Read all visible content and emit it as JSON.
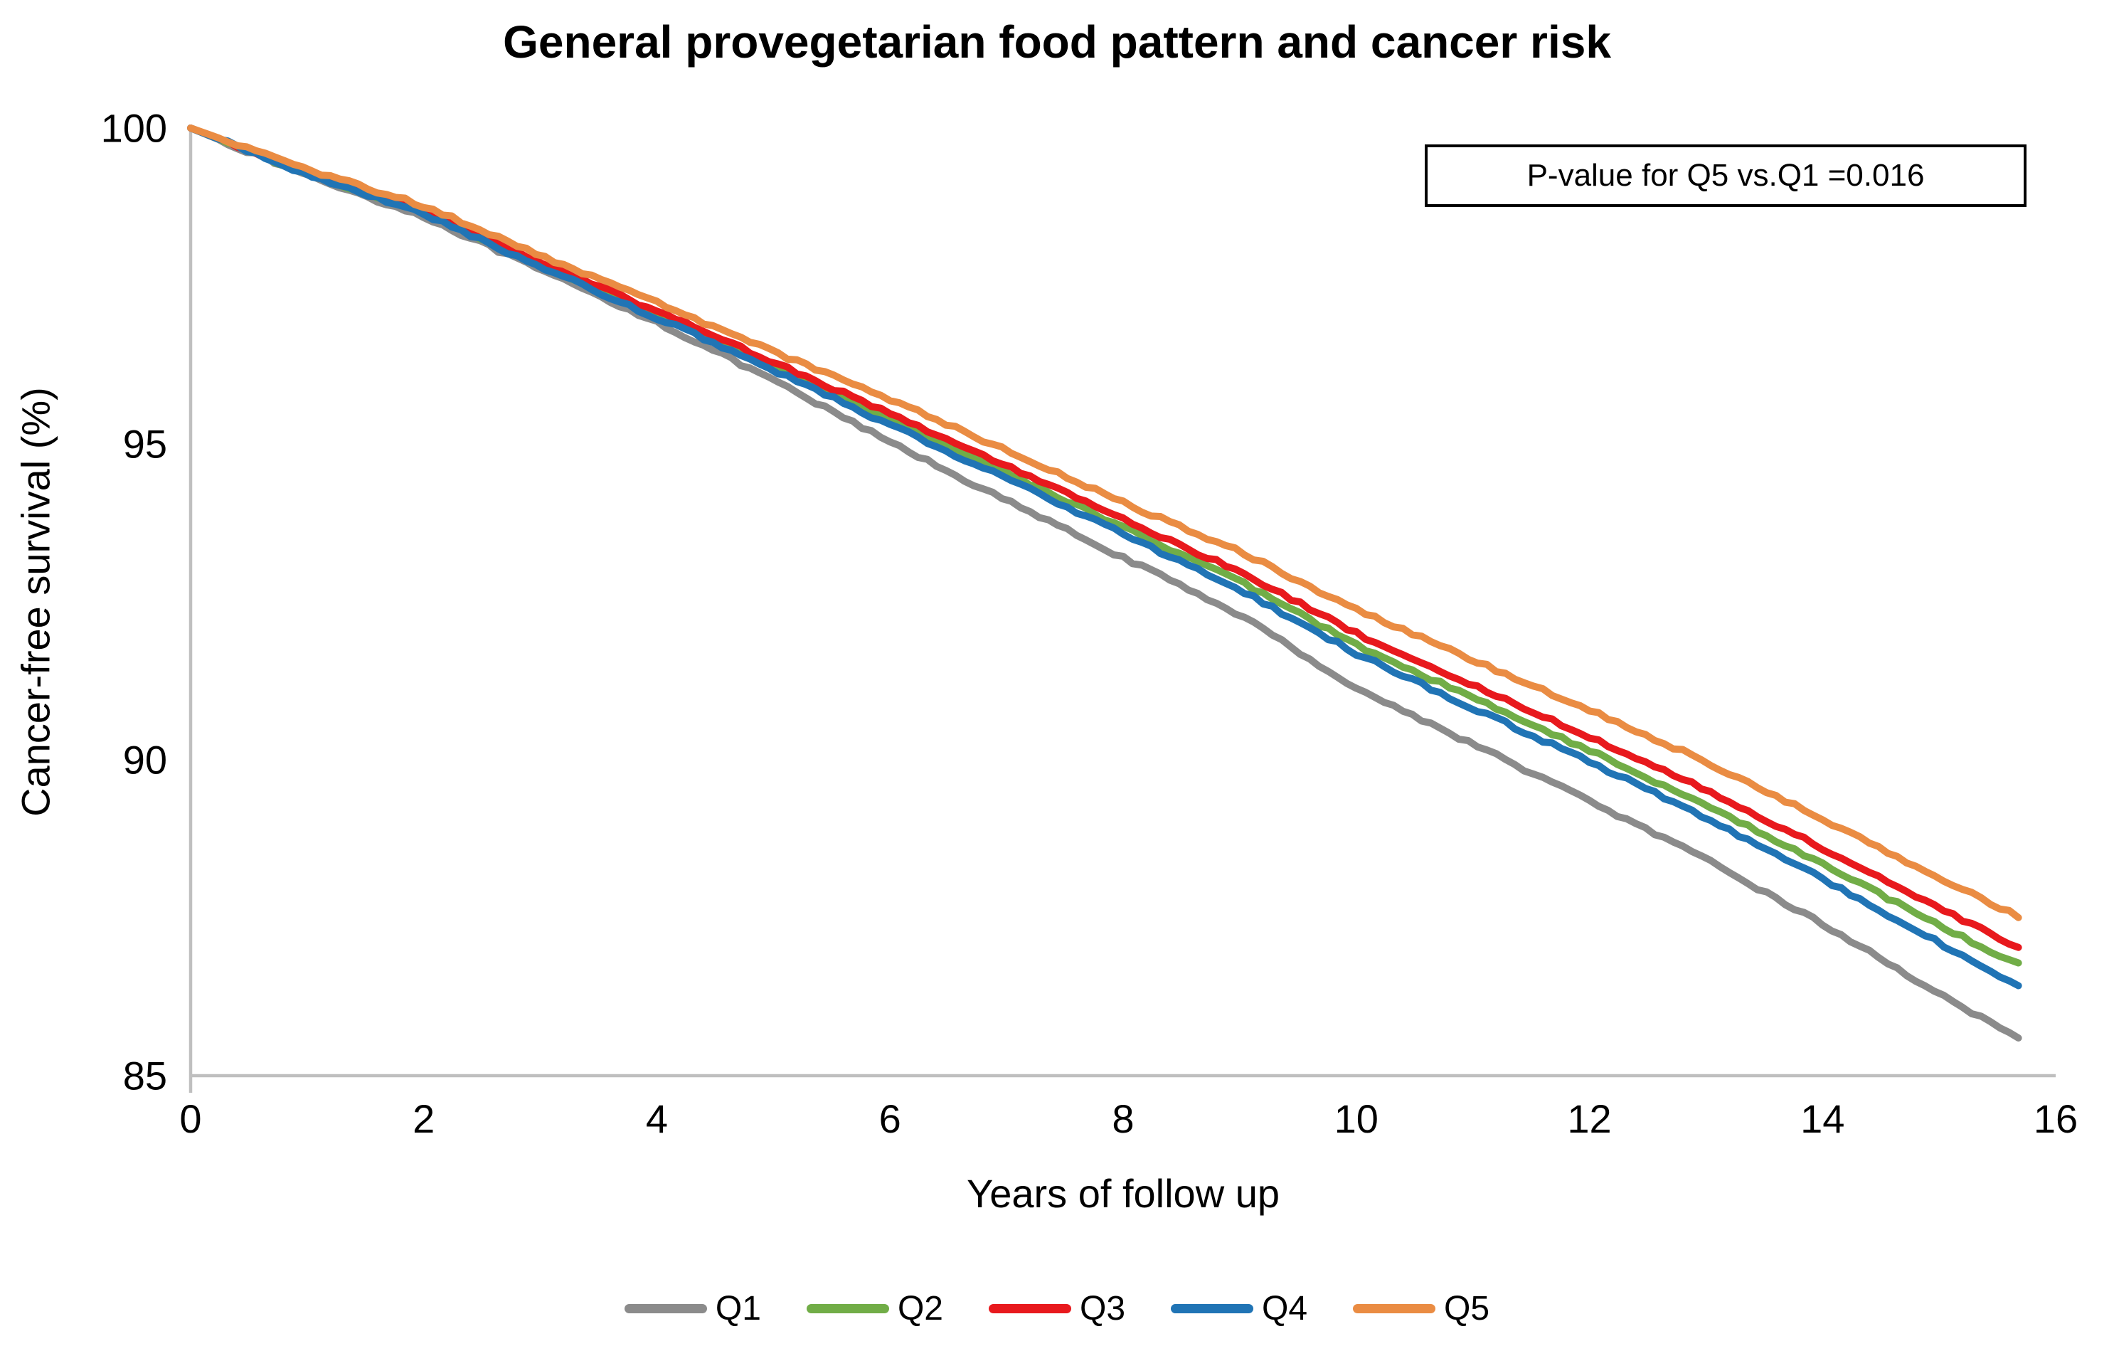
{
  "chart_data": {
    "type": "line",
    "title": "General provegetarian food pattern and cancer risk",
    "xlabel": "Years of follow up",
    "ylabel": "Cancer-free survival (%)",
    "annotation": "P-value for Q5 vs.Q1 =0.016",
    "xlim": [
      0,
      16
    ],
    "ylim": [
      85,
      100
    ],
    "x_ticks": [
      0,
      2,
      4,
      6,
      8,
      10,
      12,
      14,
      16
    ],
    "y_ticks": [
      100,
      95,
      90,
      85
    ],
    "grid": false,
    "legend_position": "bottom",
    "axis_color": "#BFBFBF",
    "x": [
      0,
      1,
      2,
      3,
      4,
      5,
      6,
      7,
      8,
      9,
      10,
      11,
      12,
      13,
      14,
      15,
      15.7
    ],
    "series": [
      {
        "name": "Q1",
        "color": "#8B8B8B",
        "values": [
          100,
          99.25,
          98.6,
          97.75,
          96.93,
          96.0,
          95.03,
          94.1,
          93.2,
          92.3,
          91.13,
          90.25,
          89.35,
          88.42,
          87.4,
          86.3,
          85.55
        ]
      },
      {
        "name": "Q2",
        "color": "#71AD47",
        "values": [
          100,
          99.28,
          98.67,
          97.84,
          97.05,
          96.24,
          95.4,
          94.55,
          93.68,
          92.82,
          91.82,
          90.98,
          90.15,
          89.28,
          88.35,
          87.38,
          86.75
        ]
      },
      {
        "name": "Q3",
        "color": "#E8191D",
        "values": [
          100,
          99.3,
          98.7,
          97.88,
          97.1,
          96.3,
          95.48,
          94.65,
          93.8,
          92.98,
          92.0,
          91.18,
          90.37,
          89.52,
          88.6,
          87.65,
          87.0
        ]
      },
      {
        "name": "Q4",
        "color": "#2074B5",
        "values": [
          100,
          99.27,
          98.64,
          97.8,
          97.0,
          96.17,
          95.3,
          94.45,
          93.57,
          92.7,
          91.68,
          90.82,
          89.97,
          89.08,
          88.12,
          87.1,
          86.4
        ]
      },
      {
        "name": "Q5",
        "color": "#EA8C43",
        "values": [
          100,
          99.35,
          98.77,
          97.98,
          97.23,
          96.46,
          95.7,
          94.9,
          94.07,
          93.3,
          92.37,
          91.58,
          90.79,
          89.97,
          89.06,
          88.14,
          87.5
        ]
      }
    ],
    "legend": [
      "Q1",
      "Q2",
      "Q3",
      "Q4",
      "Q5"
    ]
  }
}
